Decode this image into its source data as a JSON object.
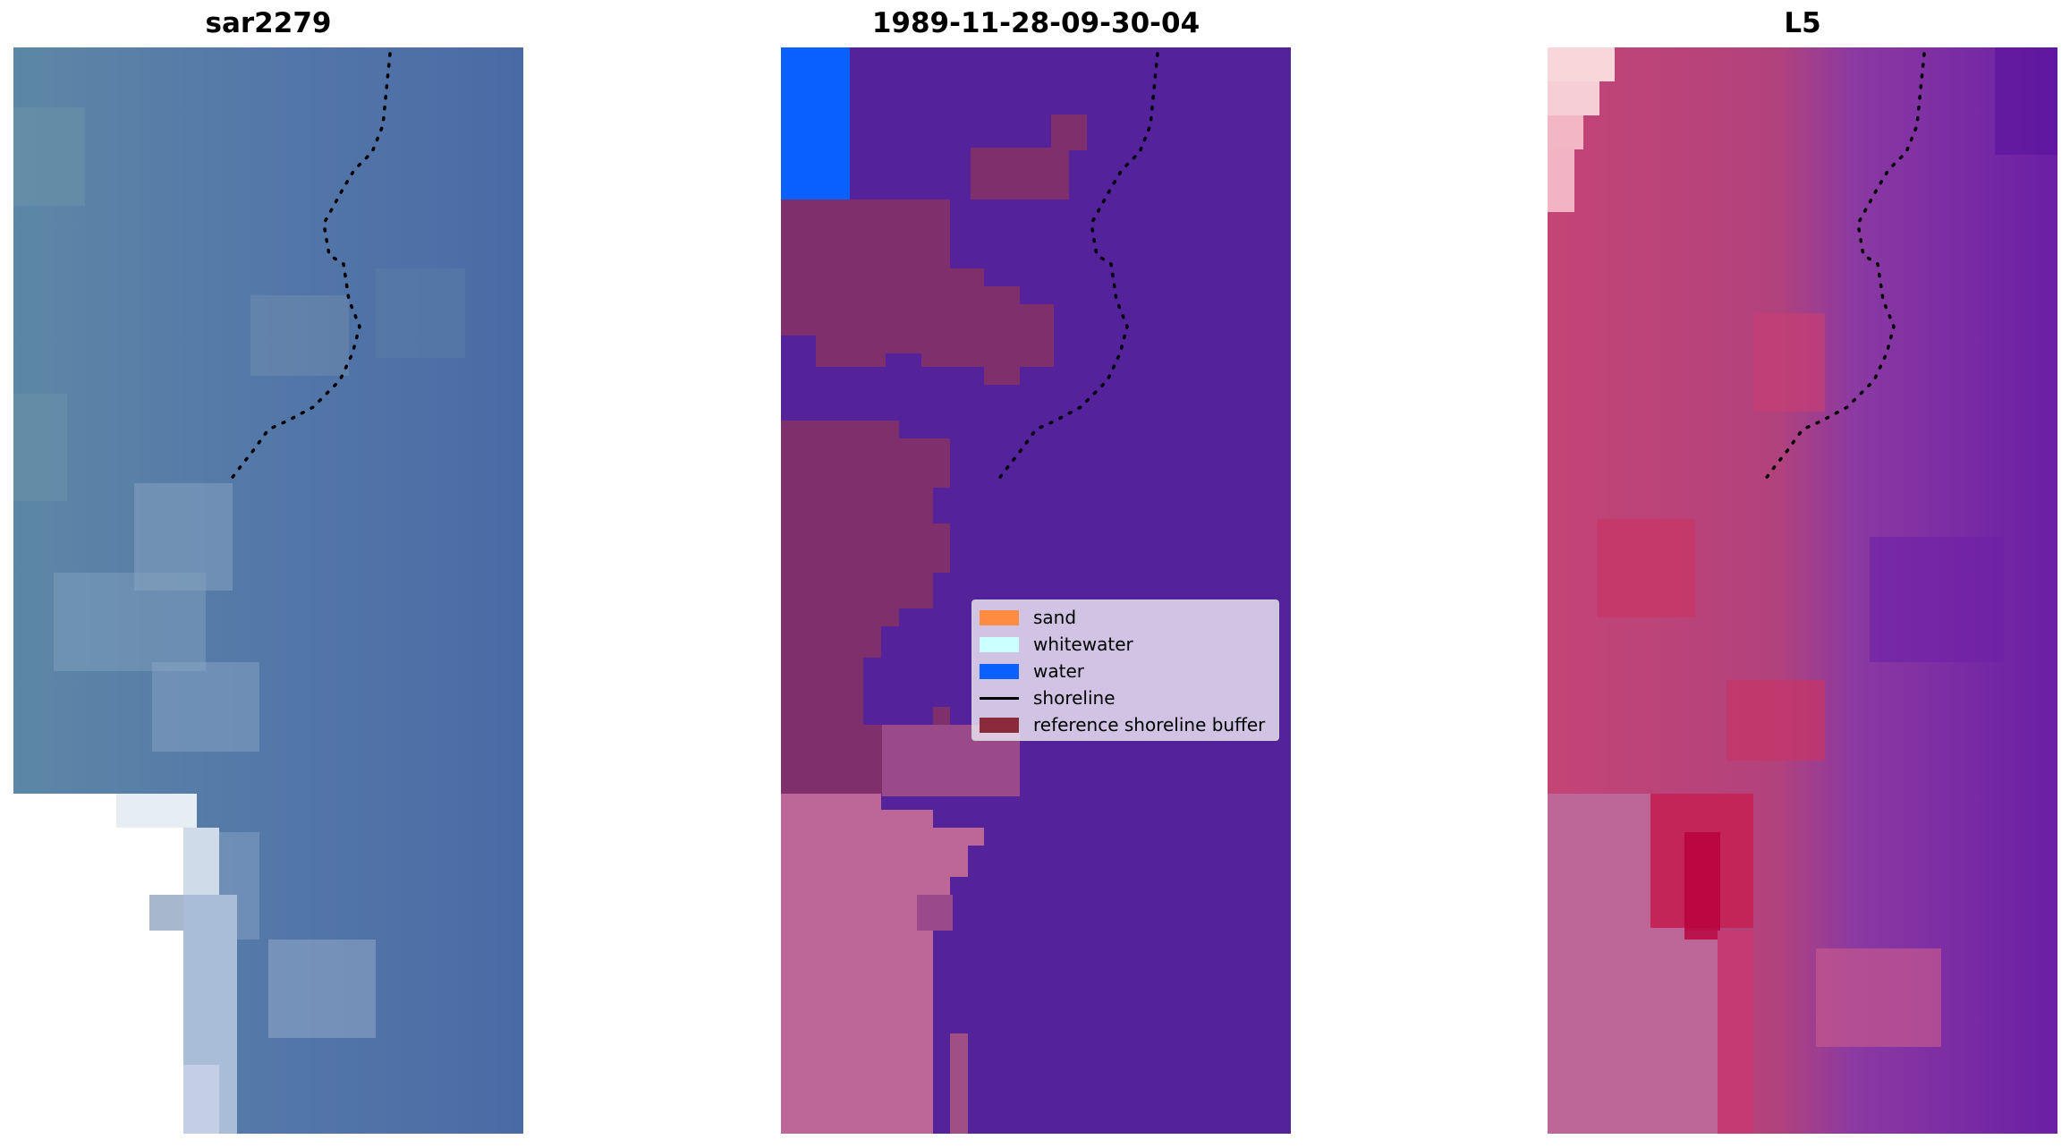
{
  "panels": [
    {
      "title": "sar2279"
    },
    {
      "title": "1989-11-28-09-30-04"
    },
    {
      "title": "L5"
    }
  ],
  "legend": {
    "items": [
      {
        "label": "sand",
        "color": "#ff8c40"
      },
      {
        "label": "whitewater",
        "color": "#ccffff"
      },
      {
        "label": "water",
        "color": "#0b61ff"
      },
      {
        "label": "shoreline",
        "color": "#000000",
        "style": "line"
      },
      {
        "label": "reference shoreline buffer",
        "color": "#8b2a3b"
      }
    ]
  },
  "colors": {
    "sar_base": "#4f73a3",
    "classified_base": "#54229a",
    "buffer": "#7e2f6c",
    "l5_base": "#8a3aa0",
    "l5_land": "#c54878"
  }
}
